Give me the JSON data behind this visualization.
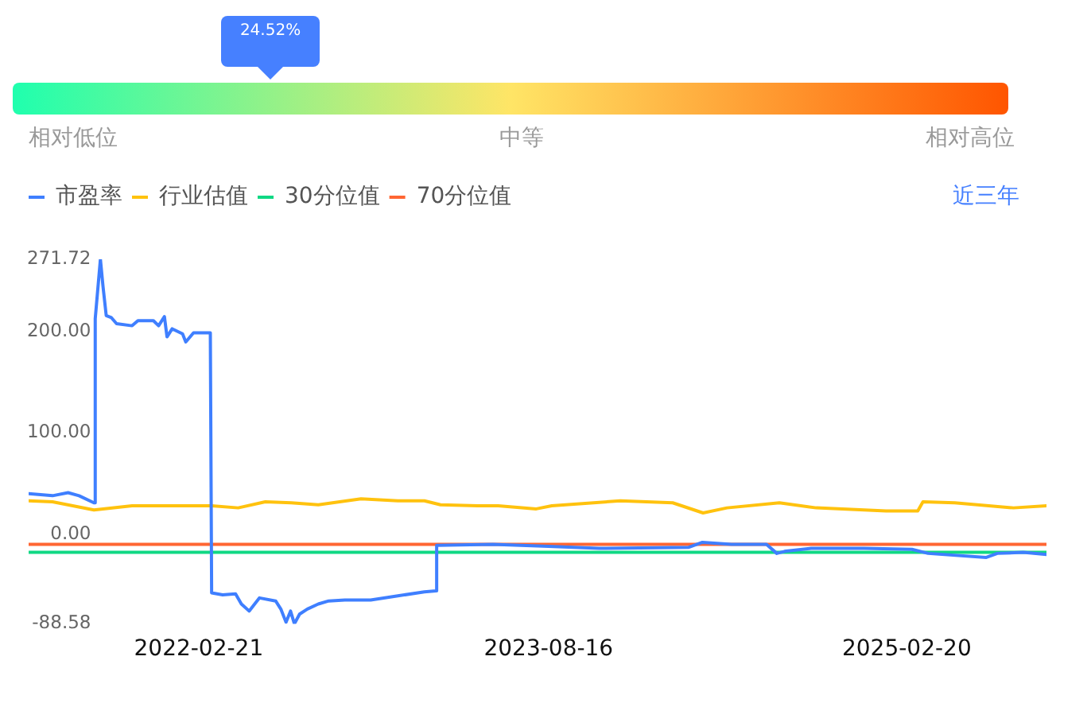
{
  "chart_data": [
    {
      "type": "other",
      "values": [
        24.52
      ],
      "value_labels": [
        "24.52%"
      ],
      "color": "#4680ff",
      "annotations": [
        "相对低位",
        "中等",
        "相对高位"
      ]
    },
    {
      "type": "line",
      "series": [
        {
          "name": "市盈率",
          "color": "#3f7fff",
          "x": [
            "2021-06-03",
            "2021-07-10",
            "2021-08-03",
            "2021-08-20",
            "2021-09-12",
            "2021-09-14",
            "2021-09-22",
            "2021-09-26",
            "2021-10-01",
            "2021-10-09",
            "2021-10-17",
            "2021-11-10",
            "2021-11-19",
            "2021-12-13",
            "2021-12-21",
            "2021-12-30",
            "2022-01-03",
            "2022-01-11",
            "2022-01-27",
            "2022-02-01",
            "2022-02-13",
            "2022-03-11",
            "2022-03-13",
            "2022-03-30",
            "2022-04-19",
            "2022-04-28",
            "2022-05-10",
            "2022-05-26",
            "2022-06-20",
            "2022-06-28",
            "2022-07-06",
            "2022-07-13",
            "2022-07-19",
            "2022-07-27",
            "2022-08-08",
            "2022-08-25",
            "2022-09-10",
            "2022-10-05",
            "2022-11-14",
            "2022-12-26",
            "2023-02-05",
            "2023-02-23",
            "2023-02-24",
            "2023-05-22",
            "2023-08-16",
            "2023-11-02",
            "2024-03-20",
            "2024-04-10",
            "2024-05-25",
            "2024-07-18",
            "2024-08-03",
            "2024-08-15",
            "2024-09-25",
            "2024-12-16",
            "2025-02-28",
            "2025-03-25",
            "2025-06-23",
            "2025-07-10",
            "2025-08-19",
            "2025-09-24"
          ],
          "values": [
            40,
            38,
            41,
            38,
            31,
            213,
            271.72,
            245,
            216,
            214,
            208,
            206,
            211,
            211,
            206,
            215,
            195,
            203,
            198,
            190,
            199,
            199,
            -58,
            -60,
            -59,
            -69,
            -76,
            -63,
            -66,
            -74,
            -87,
            -76,
            -88.58,
            -79,
            -74,
            -69,
            -66,
            -65,
            -65,
            -61,
            -57,
            -56,
            -11,
            -10,
            -12,
            -14,
            -13,
            -8,
            -10,
            -10,
            -19,
            -17,
            -14,
            -14,
            -15,
            -19,
            -23,
            -19,
            -18,
            -20
          ]
        },
        {
          "name": "行业估值",
          "color": "#ffc20e",
          "x": [
            "2021-06-03",
            "2021-07-10",
            "2021-09-12",
            "2021-11-10",
            "2022-02-01",
            "2022-03-13",
            "2022-04-23",
            "2022-06-04",
            "2022-07-14",
            "2022-08-25",
            "2022-10-30",
            "2022-12-26",
            "2023-02-05",
            "2023-03-02",
            "2023-04-28",
            "2023-05-30",
            "2023-07-28",
            "2023-08-21",
            "2023-12-05",
            "2024-02-24",
            "2024-04-11",
            "2024-05-18",
            "2024-08-07",
            "2024-10-03",
            "2025-01-19",
            "2025-03-09",
            "2025-03-17",
            "2025-05-05",
            "2025-08-04",
            "2025-09-24"
          ],
          "values": [
            33,
            32,
            24,
            28,
            28,
            28,
            26,
            32,
            31,
            29,
            35,
            33,
            33,
            29,
            28,
            28,
            25,
            28,
            33,
            31,
            21,
            26,
            31,
            26,
            23,
            23,
            32,
            31,
            26,
            28
          ]
        },
        {
          "name": "30分位值",
          "color": "#10d884",
          "x": [
            "2021-06-03",
            "2025-09-24"
          ],
          "values": [
            -18,
            -18
          ]
        },
        {
          "name": "70分位值",
          "color": "#ff6633",
          "x": [
            "2021-06-03",
            "2025-09-24"
          ],
          "values": [
            -10,
            -10
          ]
        }
      ],
      "xlim": [
        "2021-06-03",
        "2025-09-24"
      ],
      "xticks": [
        "2022-02-21",
        "2023-08-16",
        "2025-02-20"
      ],
      "ylim": [
        -88.58,
        271.72
      ],
      "yticks": [
        -88.58,
        {
          "value": 0,
          "label": "0.00"
        },
        {
          "value": 100,
          "label": "100.00"
        },
        {
          "value": 200,
          "label": "200.00"
        },
        271.72
      ],
      "legend": "top left",
      "annotations": [
        "近三年"
      ]
    }
  ]
}
